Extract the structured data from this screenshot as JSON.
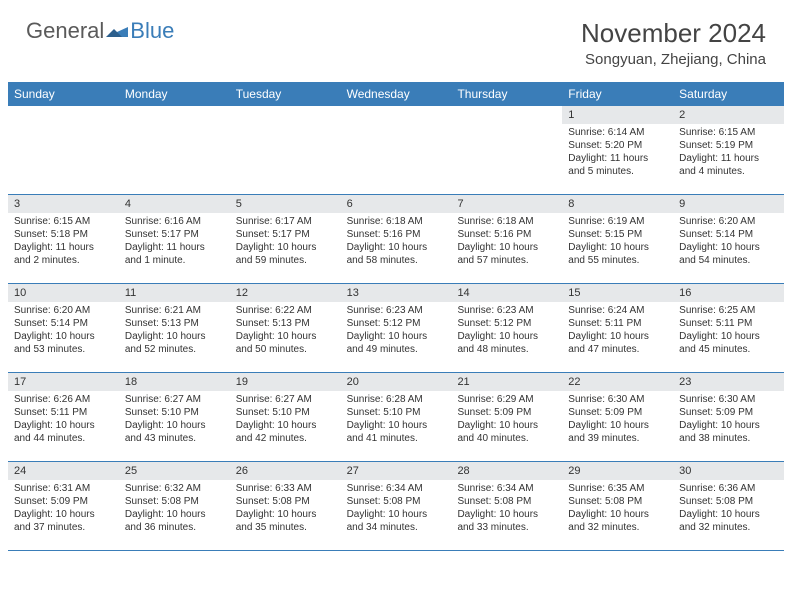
{
  "logo": {
    "part1": "General",
    "part2": "Blue"
  },
  "title": "November 2024",
  "location": "Songyuan, Zhejiang, China",
  "colors": {
    "header_bar": "#3a7db8",
    "daynum_bg": "#e6e8ea",
    "border": "#3a7db8",
    "text": "#333333",
    "logo_gray": "#5a5a5a",
    "logo_blue": "#3a7db8",
    "bg": "#ffffff"
  },
  "weekdays": [
    "Sunday",
    "Monday",
    "Tuesday",
    "Wednesday",
    "Thursday",
    "Friday",
    "Saturday"
  ],
  "weeks": [
    [
      null,
      null,
      null,
      null,
      null,
      {
        "n": "1",
        "sr": "Sunrise: 6:14 AM",
        "ss": "Sunset: 5:20 PM",
        "d1": "Daylight: 11 hours",
        "d2": "and 5 minutes."
      },
      {
        "n": "2",
        "sr": "Sunrise: 6:15 AM",
        "ss": "Sunset: 5:19 PM",
        "d1": "Daylight: 11 hours",
        "d2": "and 4 minutes."
      }
    ],
    [
      {
        "n": "3",
        "sr": "Sunrise: 6:15 AM",
        "ss": "Sunset: 5:18 PM",
        "d1": "Daylight: 11 hours",
        "d2": "and 2 minutes."
      },
      {
        "n": "4",
        "sr": "Sunrise: 6:16 AM",
        "ss": "Sunset: 5:17 PM",
        "d1": "Daylight: 11 hours",
        "d2": "and 1 minute."
      },
      {
        "n": "5",
        "sr": "Sunrise: 6:17 AM",
        "ss": "Sunset: 5:17 PM",
        "d1": "Daylight: 10 hours",
        "d2": "and 59 minutes."
      },
      {
        "n": "6",
        "sr": "Sunrise: 6:18 AM",
        "ss": "Sunset: 5:16 PM",
        "d1": "Daylight: 10 hours",
        "d2": "and 58 minutes."
      },
      {
        "n": "7",
        "sr": "Sunrise: 6:18 AM",
        "ss": "Sunset: 5:16 PM",
        "d1": "Daylight: 10 hours",
        "d2": "and 57 minutes."
      },
      {
        "n": "8",
        "sr": "Sunrise: 6:19 AM",
        "ss": "Sunset: 5:15 PM",
        "d1": "Daylight: 10 hours",
        "d2": "and 55 minutes."
      },
      {
        "n": "9",
        "sr": "Sunrise: 6:20 AM",
        "ss": "Sunset: 5:14 PM",
        "d1": "Daylight: 10 hours",
        "d2": "and 54 minutes."
      }
    ],
    [
      {
        "n": "10",
        "sr": "Sunrise: 6:20 AM",
        "ss": "Sunset: 5:14 PM",
        "d1": "Daylight: 10 hours",
        "d2": "and 53 minutes."
      },
      {
        "n": "11",
        "sr": "Sunrise: 6:21 AM",
        "ss": "Sunset: 5:13 PM",
        "d1": "Daylight: 10 hours",
        "d2": "and 52 minutes."
      },
      {
        "n": "12",
        "sr": "Sunrise: 6:22 AM",
        "ss": "Sunset: 5:13 PM",
        "d1": "Daylight: 10 hours",
        "d2": "and 50 minutes."
      },
      {
        "n": "13",
        "sr": "Sunrise: 6:23 AM",
        "ss": "Sunset: 5:12 PM",
        "d1": "Daylight: 10 hours",
        "d2": "and 49 minutes."
      },
      {
        "n": "14",
        "sr": "Sunrise: 6:23 AM",
        "ss": "Sunset: 5:12 PM",
        "d1": "Daylight: 10 hours",
        "d2": "and 48 minutes."
      },
      {
        "n": "15",
        "sr": "Sunrise: 6:24 AM",
        "ss": "Sunset: 5:11 PM",
        "d1": "Daylight: 10 hours",
        "d2": "and 47 minutes."
      },
      {
        "n": "16",
        "sr": "Sunrise: 6:25 AM",
        "ss": "Sunset: 5:11 PM",
        "d1": "Daylight: 10 hours",
        "d2": "and 45 minutes."
      }
    ],
    [
      {
        "n": "17",
        "sr": "Sunrise: 6:26 AM",
        "ss": "Sunset: 5:11 PM",
        "d1": "Daylight: 10 hours",
        "d2": "and 44 minutes."
      },
      {
        "n": "18",
        "sr": "Sunrise: 6:27 AM",
        "ss": "Sunset: 5:10 PM",
        "d1": "Daylight: 10 hours",
        "d2": "and 43 minutes."
      },
      {
        "n": "19",
        "sr": "Sunrise: 6:27 AM",
        "ss": "Sunset: 5:10 PM",
        "d1": "Daylight: 10 hours",
        "d2": "and 42 minutes."
      },
      {
        "n": "20",
        "sr": "Sunrise: 6:28 AM",
        "ss": "Sunset: 5:10 PM",
        "d1": "Daylight: 10 hours",
        "d2": "and 41 minutes."
      },
      {
        "n": "21",
        "sr": "Sunrise: 6:29 AM",
        "ss": "Sunset: 5:09 PM",
        "d1": "Daylight: 10 hours",
        "d2": "and 40 minutes."
      },
      {
        "n": "22",
        "sr": "Sunrise: 6:30 AM",
        "ss": "Sunset: 5:09 PM",
        "d1": "Daylight: 10 hours",
        "d2": "and 39 minutes."
      },
      {
        "n": "23",
        "sr": "Sunrise: 6:30 AM",
        "ss": "Sunset: 5:09 PM",
        "d1": "Daylight: 10 hours",
        "d2": "and 38 minutes."
      }
    ],
    [
      {
        "n": "24",
        "sr": "Sunrise: 6:31 AM",
        "ss": "Sunset: 5:09 PM",
        "d1": "Daylight: 10 hours",
        "d2": "and 37 minutes."
      },
      {
        "n": "25",
        "sr": "Sunrise: 6:32 AM",
        "ss": "Sunset: 5:08 PM",
        "d1": "Daylight: 10 hours",
        "d2": "and 36 minutes."
      },
      {
        "n": "26",
        "sr": "Sunrise: 6:33 AM",
        "ss": "Sunset: 5:08 PM",
        "d1": "Daylight: 10 hours",
        "d2": "and 35 minutes."
      },
      {
        "n": "27",
        "sr": "Sunrise: 6:34 AM",
        "ss": "Sunset: 5:08 PM",
        "d1": "Daylight: 10 hours",
        "d2": "and 34 minutes."
      },
      {
        "n": "28",
        "sr": "Sunrise: 6:34 AM",
        "ss": "Sunset: 5:08 PM",
        "d1": "Daylight: 10 hours",
        "d2": "and 33 minutes."
      },
      {
        "n": "29",
        "sr": "Sunrise: 6:35 AM",
        "ss": "Sunset: 5:08 PM",
        "d1": "Daylight: 10 hours",
        "d2": "and 32 minutes."
      },
      {
        "n": "30",
        "sr": "Sunrise: 6:36 AM",
        "ss": "Sunset: 5:08 PM",
        "d1": "Daylight: 10 hours",
        "d2": "and 32 minutes."
      }
    ]
  ]
}
